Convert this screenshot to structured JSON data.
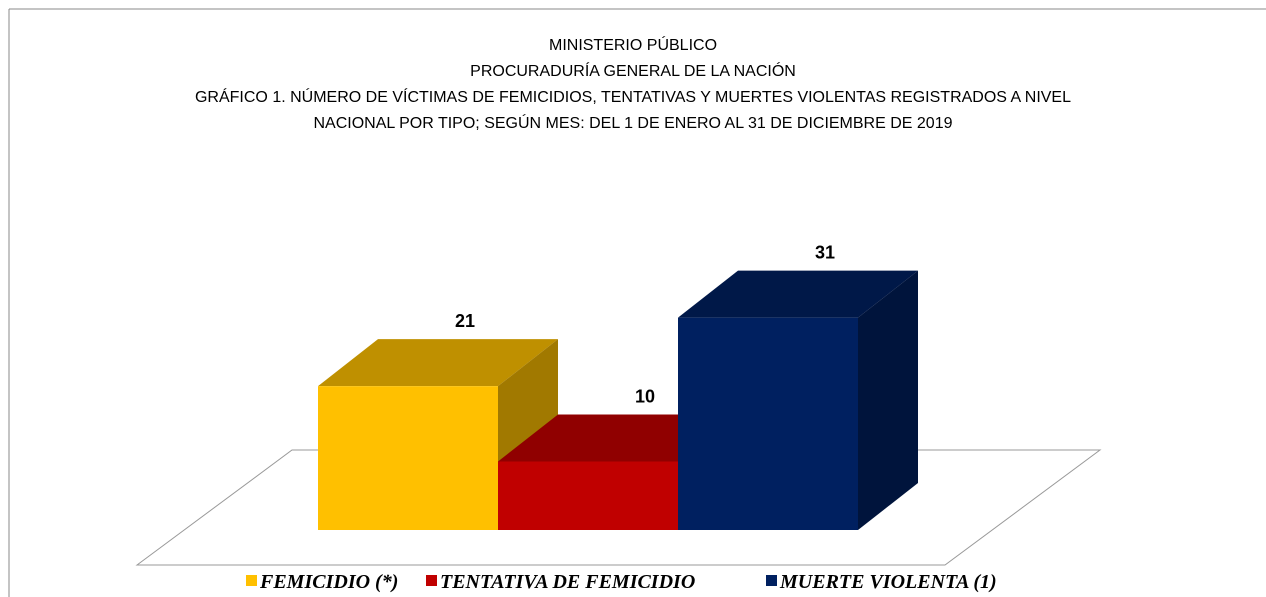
{
  "chart_data": {
    "type": "bar3d",
    "title": [
      "MINISTERIO PÚBLICO",
      "PROCURADURÍA GENERAL DE LA NACIÓN",
      "GRÁFICO 1. NÚMERO DE VÍCTIMAS DE FEMICIDIOS, TENTATIVAS Y MUERTES VIOLENTAS REGISTRADOS A NIVEL",
      "NACIONAL POR TIPO; SEGÚN MES: DEL 1  DE ENERO AL 31  DE DICIEMBRE  DE 2019"
    ],
    "categories": [
      null
    ],
    "series": [
      {
        "name": "FEMICIDIO (*)",
        "color": "#ffc000",
        "values": [
          21
        ]
      },
      {
        "name": "TENTATIVA DE FEMICIDIO",
        "color": "#c00000",
        "values": [
          10
        ]
      },
      {
        "name": "MUERTE VIOLENTA (1)",
        "color": "#002060",
        "values": [
          31
        ]
      }
    ],
    "legend": "bottom"
  }
}
